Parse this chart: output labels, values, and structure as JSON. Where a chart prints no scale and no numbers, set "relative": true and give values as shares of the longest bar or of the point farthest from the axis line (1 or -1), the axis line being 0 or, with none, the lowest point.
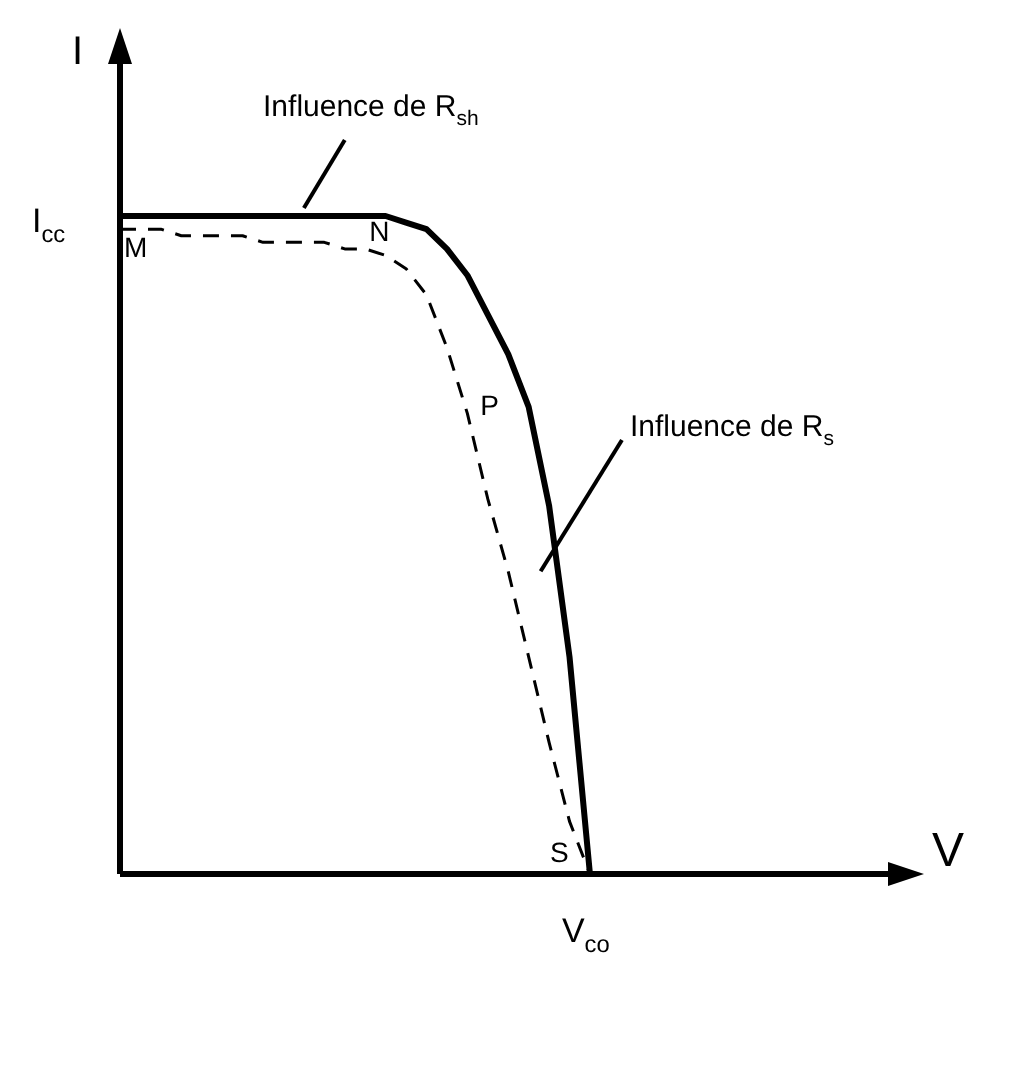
{
  "chart_data": {
    "type": "line",
    "relative": true,
    "xlabel": "V",
    "ylabel": "I",
    "categories": [
      null,
      null,
      null,
      null,
      null,
      null,
      null,
      null,
      null,
      null,
      null,
      null,
      null,
      null,
      null,
      null,
      null,
      null,
      null,
      null,
      null,
      null,
      null,
      null,
      null,
      null,
      null,
      null,
      null,
      null,
      null,
      null,
      null,
      null,
      null,
      null,
      null,
      null
    ],
    "series": [
      {
        "color": "#000000",
        "line_style": "solid",
        "values": [
          1,
          1,
          1,
          1,
          1,
          1,
          1,
          1,
          1,
          1,
          1,
          1,
          1,
          1,
          0.99,
          0.98,
          0.95,
          0.91,
          0.85,
          0.79,
          0.71,
          0.56,
          0.33,
          0,
          null,
          null,
          null,
          null,
          null,
          null,
          null,
          null,
          null,
          null,
          null,
          null,
          null,
          null
        ]
      },
      {
        "color": "#000000",
        "line_style": "dashed",
        "values": [
          0.98,
          0.98,
          0.98,
          0.97,
          0.97,
          0.97,
          0.97,
          0.96,
          0.96,
          0.96,
          0.96,
          0.95,
          0.95,
          0.94,
          0.92,
          0.88,
          0.8,
          0.7,
          0.57,
          0.46,
          0.33,
          0.2,
          0.08,
          0,
          null,
          null,
          null,
          null,
          null,
          null,
          null,
          null,
          null,
          null,
          null,
          null,
          null,
          null
        ]
      }
    ],
    "annotations": [
      "I$_{cc}$",
      "V$_{co}$",
      "M",
      "N",
      "P",
      "S",
      "Influence de R$_{sh}$",
      "Influence de R$_{s}$"
    ],
    "legend": false,
    "marker": "none"
  }
}
